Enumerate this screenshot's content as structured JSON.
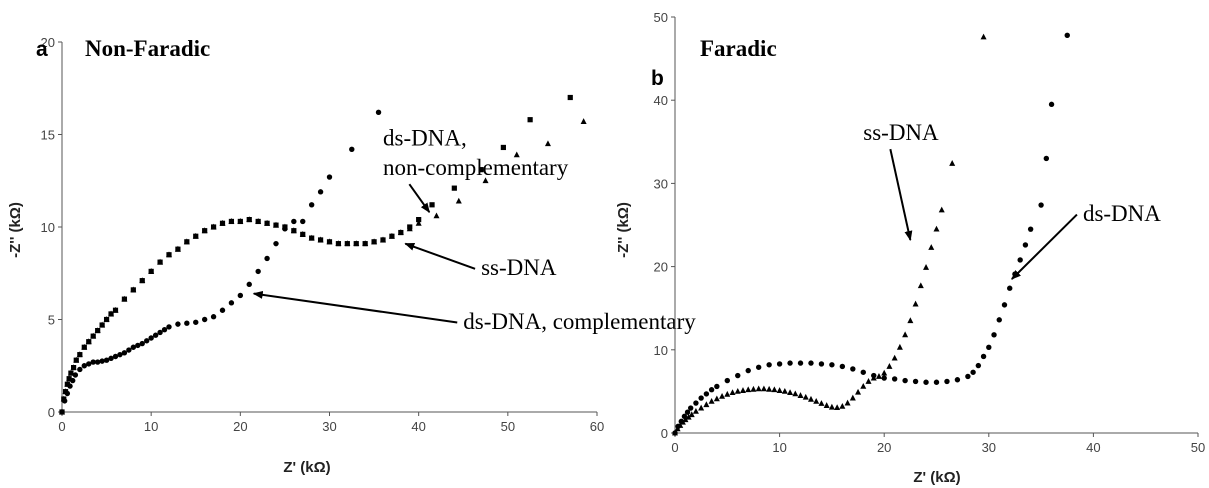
{
  "colors": {
    "marker": "#000000",
    "axis": "#555555",
    "text": "#000000"
  },
  "chart_data": [
    {
      "type": "scatter",
      "panel_label": "a",
      "title": "Non-Faradic",
      "xlabel": "Z' (kΩ)",
      "ylabel": "-Z'' (kΩ)",
      "xlim": [
        0,
        60
      ],
      "ylim": [
        0,
        20
      ],
      "xticks": [
        0,
        10,
        20,
        30,
        40,
        50,
        60
      ],
      "yticks": [
        0,
        5,
        10,
        15,
        20
      ],
      "grid": false,
      "annotations": [
        {
          "text": "ds-DNA,",
          "x": 36,
          "y": 14.4,
          "arrow_to": null
        },
        {
          "text": "non-complementary",
          "x": 36,
          "y": 12.8,
          "arrow_to": [
            41.2,
            10.8
          ]
        },
        {
          "text": "ss-DNA",
          "x": 47,
          "y": 7.4,
          "arrow_to": [
            38.5,
            9.1
          ]
        },
        {
          "text": "ds-DNA, complementary",
          "x": 45,
          "y": 4.5,
          "arrow_to": [
            21.5,
            6.4
          ]
        }
      ],
      "series": [
        {
          "marker": "square",
          "x": [
            0,
            0.2,
            0.4,
            0.6,
            0.8,
            1,
            1.3,
            1.6,
            2,
            2.5,
            3,
            3.5,
            4,
            4.5,
            5,
            5.5,
            6,
            7,
            8,
            9,
            10,
            11,
            12,
            13,
            14,
            15,
            16,
            17,
            18,
            19,
            20,
            21,
            22,
            23,
            24,
            25,
            26,
            27,
            28,
            29,
            30,
            31,
            32,
            33,
            34,
            35,
            36,
            37,
            38,
            39,
            40,
            41.5,
            44,
            47,
            49.5,
            52.5,
            57
          ],
          "y": [
            0,
            0.7,
            1.1,
            1.5,
            1.8,
            2.1,
            2.4,
            2.8,
            3.1,
            3.5,
            3.8,
            4.1,
            4.4,
            4.7,
            5,
            5.3,
            5.5,
            6.1,
            6.6,
            7.1,
            7.6,
            8.1,
            8.5,
            8.8,
            9.2,
            9.5,
            9.8,
            10,
            10.2,
            10.3,
            10.3,
            10.4,
            10.3,
            10.2,
            10.1,
            10,
            9.8,
            9.6,
            9.4,
            9.3,
            9.2,
            9.1,
            9.1,
            9.1,
            9.1,
            9.2,
            9.3,
            9.5,
            9.7,
            10,
            10.4,
            11.2,
            12.1,
            13.1,
            14.3,
            15.8,
            17
          ]
        },
        {
          "marker": "triangle",
          "x": [
            0,
            0.2,
            0.4,
            0.6,
            0.8,
            1,
            1.3,
            1.6,
            2,
            2.5,
            3,
            3.5,
            4,
            4.5,
            5,
            5.5,
            6,
            7,
            8,
            9,
            10,
            11,
            12,
            13,
            14,
            15,
            16,
            17,
            18,
            19,
            20,
            21,
            22,
            23,
            24,
            25,
            26,
            27,
            28,
            29,
            30,
            31,
            32,
            33,
            34,
            35,
            36,
            37,
            38,
            39,
            40,
            42,
            44.5,
            47.5,
            51,
            54.5,
            58.5
          ],
          "y": [
            0,
            0.7,
            1.1,
            1.5,
            1.8,
            2.1,
            2.4,
            2.8,
            3.1,
            3.5,
            3.8,
            4.1,
            4.4,
            4.7,
            5,
            5.3,
            5.5,
            6.1,
            6.6,
            7.1,
            7.6,
            8.1,
            8.5,
            8.8,
            9.2,
            9.5,
            9.8,
            10,
            10.2,
            10.3,
            10.3,
            10.4,
            10.3,
            10.2,
            10.1,
            10,
            9.8,
            9.6,
            9.4,
            9.3,
            9.2,
            9.1,
            9.1,
            9.1,
            9.1,
            9.2,
            9.3,
            9.5,
            9.7,
            9.9,
            10.2,
            10.6,
            11.4,
            12.5,
            13.9,
            14.5,
            15.7
          ]
        },
        {
          "marker": "circle",
          "x": [
            0,
            0.3,
            0.6,
            0.9,
            1.2,
            1.5,
            2,
            2.5,
            3,
            3.5,
            4,
            4.5,
            5,
            5.5,
            6,
            6.5,
            7,
            7.5,
            8,
            8.5,
            9,
            9.5,
            10,
            10.5,
            11,
            11.5,
            12,
            13,
            14,
            15,
            16,
            17,
            18,
            19,
            20,
            21,
            22,
            23,
            24,
            25,
            26,
            27,
            28,
            29,
            30,
            32.5,
            35.5
          ],
          "y": [
            0,
            0.6,
            1,
            1.4,
            1.7,
            2,
            2.3,
            2.5,
            2.6,
            2.7,
            2.7,
            2.75,
            2.8,
            2.9,
            3,
            3.1,
            3.2,
            3.35,
            3.5,
            3.6,
            3.7,
            3.85,
            4,
            4.15,
            4.3,
            4.45,
            4.6,
            4.75,
            4.8,
            4.85,
            5,
            5.15,
            5.5,
            5.9,
            6.3,
            6.9,
            7.6,
            8.3,
            9.1,
            9.9,
            10.3,
            10.3,
            11.2,
            11.9,
            12.7,
            14.2,
            16.2
          ]
        }
      ]
    },
    {
      "type": "scatter",
      "panel_label": "b",
      "title": "Faradic",
      "xlabel": "Z' (kΩ)",
      "ylabel": "-Z'' (kΩ)",
      "xlim": [
        0,
        50
      ],
      "ylim": [
        0,
        50
      ],
      "xticks": [
        0,
        10,
        20,
        30,
        40,
        50
      ],
      "yticks": [
        0,
        10,
        20,
        30,
        40,
        50
      ],
      "grid": false,
      "annotations": [
        {
          "text": "ss-DNA",
          "x": 18,
          "y": 35.2,
          "arrow_to": [
            22.5,
            23.2
          ]
        },
        {
          "text": "ds-DNA",
          "x": 39,
          "y": 25.5,
          "arrow_to": [
            32.2,
            18.5
          ]
        }
      ],
      "series": [
        {
          "marker": "triangle",
          "x": [
            0,
            0.25,
            0.5,
            0.75,
            1,
            1.3,
            1.6,
            2,
            2.5,
            3,
            3.5,
            4,
            4.5,
            5,
            5.5,
            6,
            6.5,
            7,
            7.5,
            8,
            8.5,
            9,
            9.5,
            10,
            10.5,
            11,
            11.5,
            12,
            12.5,
            13,
            13.5,
            14,
            14.5,
            15,
            15.5,
            16,
            16.5,
            17,
            17.5,
            18,
            18.5,
            19,
            19.5,
            20,
            20.5,
            21,
            21.5,
            22,
            22.5,
            23,
            23.5,
            24,
            24.5,
            25,
            25.5,
            26.5,
            29.5
          ],
          "y": [
            0,
            0.5,
            0.9,
            1.3,
            1.6,
            1.9,
            2.2,
            2.6,
            3,
            3.4,
            3.8,
            4.1,
            4.4,
            4.65,
            4.85,
            5,
            5.1,
            5.2,
            5.25,
            5.3,
            5.3,
            5.25,
            5.2,
            5.1,
            5,
            4.85,
            4.7,
            4.5,
            4.3,
            4.05,
            3.8,
            3.55,
            3.3,
            3.1,
            3.05,
            3.2,
            3.6,
            4.2,
            4.9,
            5.6,
            6.2,
            6.6,
            6.8,
            7.2,
            8,
            9,
            10.3,
            11.8,
            13.5,
            15.5,
            17.7,
            19.9,
            22.3,
            24.5,
            26.8,
            32.4,
            47.6
          ]
        },
        {
          "marker": "circle",
          "x": [
            0,
            0.3,
            0.6,
            0.9,
            1.2,
            1.5,
            2,
            2.5,
            3,
            3.5,
            4,
            5,
            6,
            7,
            8,
            9,
            10,
            11,
            12,
            13,
            14,
            15,
            16,
            17,
            18,
            19,
            20,
            21,
            22,
            23,
            24,
            25,
            26,
            27,
            28,
            28.5,
            29,
            29.5,
            30,
            30.5,
            31,
            31.5,
            32,
            32.5,
            33,
            33.5,
            34,
            35,
            35.5,
            36,
            37.5
          ],
          "y": [
            0,
            0.8,
            1.4,
            2,
            2.5,
            3,
            3.6,
            4.2,
            4.7,
            5.2,
            5.6,
            6.3,
            6.9,
            7.5,
            7.9,
            8.2,
            8.3,
            8.4,
            8.4,
            8.4,
            8.3,
            8.2,
            8,
            7.7,
            7.3,
            6.9,
            6.6,
            6.5,
            6.3,
            6.2,
            6.1,
            6.1,
            6.2,
            6.4,
            6.8,
            7.3,
            8.1,
            9.2,
            10.3,
            11.8,
            13.6,
            15.4,
            17.4,
            19.1,
            20.8,
            22.6,
            24.5,
            27.4,
            33,
            39.5,
            47.8
          ]
        }
      ]
    }
  ]
}
